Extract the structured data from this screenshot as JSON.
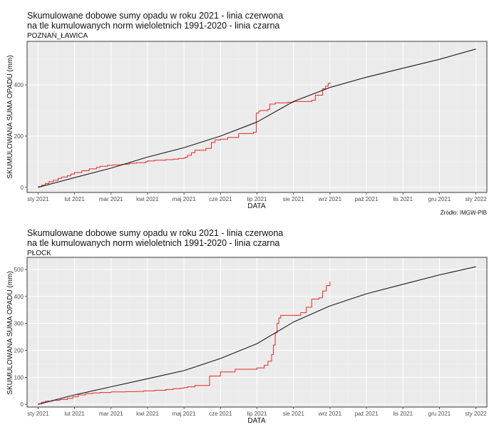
{
  "chart_data": [
    {
      "type": "line",
      "title": "Skumulowane dobowe sumy opadu w roku 2021 - linia czerwona\nna tle kumulowanych norm wieloletnich 1991-2020 - linia czarna",
      "subtitle": "POZNAŃ_ŁAWICA",
      "xlabel": "DATA",
      "ylabel": "SKUMULOWANA SUMA OPADU (mm)",
      "caption": "Źródło: IMGW-PIB",
      "x_tick_labels": [
        "sty 2021",
        "lut 2021",
        "mar 2021",
        "kwi 2021",
        "maj 2021",
        "cze 2021",
        "lip 2021",
        "sie 2021",
        "wrz 2021",
        "paź 2021",
        "lis 2021",
        "gru 2021",
        "sty 2022"
      ],
      "y_ticks": [
        0,
        200,
        400
      ],
      "ylim": [
        -20,
        570
      ],
      "xlim_month": [
        -0.3,
        12.3
      ],
      "grid": true,
      "series": [
        {
          "color": "#e8281e",
          "step": true,
          "x_month": [
            0.0,
            0.1,
            0.2,
            0.3,
            0.42,
            0.55,
            0.65,
            0.8,
            0.9,
            1.0,
            1.2,
            1.4,
            1.6,
            1.7,
            1.9,
            2.05,
            2.3,
            2.5,
            2.7,
            2.95,
            3.0,
            3.2,
            3.5,
            3.7,
            3.85,
            4.0,
            4.05,
            4.1,
            4.2,
            4.3,
            4.6,
            4.75,
            4.85,
            5.0,
            5.2,
            5.5,
            5.9,
            5.98,
            6.05,
            6.1,
            6.3,
            6.35,
            6.5,
            6.65,
            6.85,
            7.0,
            7.5,
            7.6,
            7.8,
            7.88,
            7.95,
            8.0
          ],
          "values": [
            3,
            8,
            15,
            22,
            28,
            35,
            40,
            45,
            52,
            58,
            65,
            72,
            78,
            82,
            86,
            88,
            90,
            94,
            96,
            100,
            103,
            106,
            108,
            110,
            113,
            115,
            118,
            125,
            135,
            145,
            152,
            175,
            185,
            188,
            195,
            210,
            215,
            290,
            298,
            300,
            305,
            325,
            330,
            330,
            332,
            335,
            340,
            360,
            385,
            395,
            405,
            410
          ]
        },
        {
          "color": "#1a1a1a",
          "step": false,
          "x_month": [
            0,
            1,
            2,
            3,
            4,
            5,
            6,
            7,
            8,
            9,
            10,
            11,
            12
          ],
          "values": [
            0,
            38,
            75,
            118,
            155,
            200,
            255,
            335,
            390,
            430,
            465,
            500,
            540
          ]
        }
      ]
    },
    {
      "type": "line",
      "title": "Skumulowane dobowe sumy opadu w roku 2021 - linia czerwona\nna tle kumulowanych norm wieloletnich 1991-2020 - linia czarna",
      "subtitle": "PŁOCK",
      "xlabel": "DATA",
      "ylabel": "SKUMULOWANA SUMA OPADU (mm)",
      "x_tick_labels": [
        "sty 2021",
        "lut 2021",
        "mar 2021",
        "kwi 2021",
        "maj 2021",
        "cze 2021",
        "lip 2021",
        "sie 2021",
        "wrz 2021",
        "paź 2021",
        "lis 2021",
        "gru 2021",
        "sty 2022"
      ],
      "y_ticks": [
        0,
        100,
        200,
        300,
        400,
        500
      ],
      "ylim": [
        -10,
        545
      ],
      "xlim_month": [
        -0.3,
        12.3
      ],
      "grid": true,
      "series": [
        {
          "color": "#e8281e",
          "step": true,
          "x_month": [
            0.0,
            0.1,
            0.2,
            0.4,
            0.6,
            0.8,
            0.95,
            1.1,
            1.3,
            1.5,
            1.7,
            2.0,
            2.4,
            2.7,
            2.9,
            3.2,
            3.5,
            3.7,
            3.9,
            4.0,
            4.1,
            4.3,
            4.7,
            5.0,
            5.4,
            6.0,
            6.2,
            6.3,
            6.4,
            6.45,
            6.5,
            6.55,
            6.6,
            6.65,
            6.7,
            7.0,
            7.2,
            7.35,
            7.5,
            7.7,
            7.8,
            7.9,
            8.0
          ],
          "values": [
            2,
            8,
            12,
            15,
            18,
            22,
            28,
            35,
            40,
            42,
            44,
            46,
            47,
            48,
            50,
            52,
            55,
            58,
            60,
            62,
            65,
            70,
            105,
            120,
            130,
            135,
            145,
            160,
            185,
            220,
            265,
            300,
            320,
            330,
            330,
            330,
            340,
            360,
            390,
            395,
            420,
            440,
            455
          ]
        },
        {
          "color": "#1a1a1a",
          "step": false,
          "x_month": [
            0,
            1,
            2,
            3,
            4,
            5,
            6,
            7,
            8,
            9,
            10,
            11,
            12
          ],
          "values": [
            0,
            35,
            65,
            95,
            125,
            170,
            225,
            305,
            365,
            410,
            445,
            480,
            510
          ]
        }
      ]
    }
  ]
}
